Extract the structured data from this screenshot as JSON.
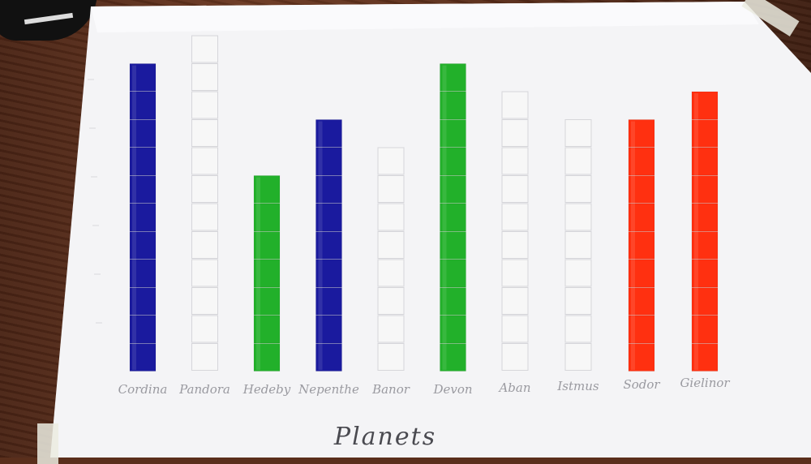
{
  "chart_data": {
    "type": "bar",
    "xlabel": "Planets",
    "ylabel": "",
    "title": "",
    "ylim": [
      0,
      12
    ],
    "grid": false,
    "categories": [
      "Cordina",
      "Pandora",
      "Hedeby",
      "Nepenthe",
      "Banor",
      "Devon",
      "Aban",
      "Istmus",
      "Sodor",
      "Gielinor"
    ],
    "values": [
      11,
      12,
      7,
      9,
      8,
      11,
      10,
      9,
      9,
      10
    ],
    "colors": [
      "#1a1a9e",
      "#f7f7f7",
      "#22b02a",
      "#1a1a9e",
      "#f7f7f7",
      "#22b02a",
      "#f7f7f7",
      "#f7f7f7",
      "#ff3010",
      "#ff3010"
    ]
  }
}
